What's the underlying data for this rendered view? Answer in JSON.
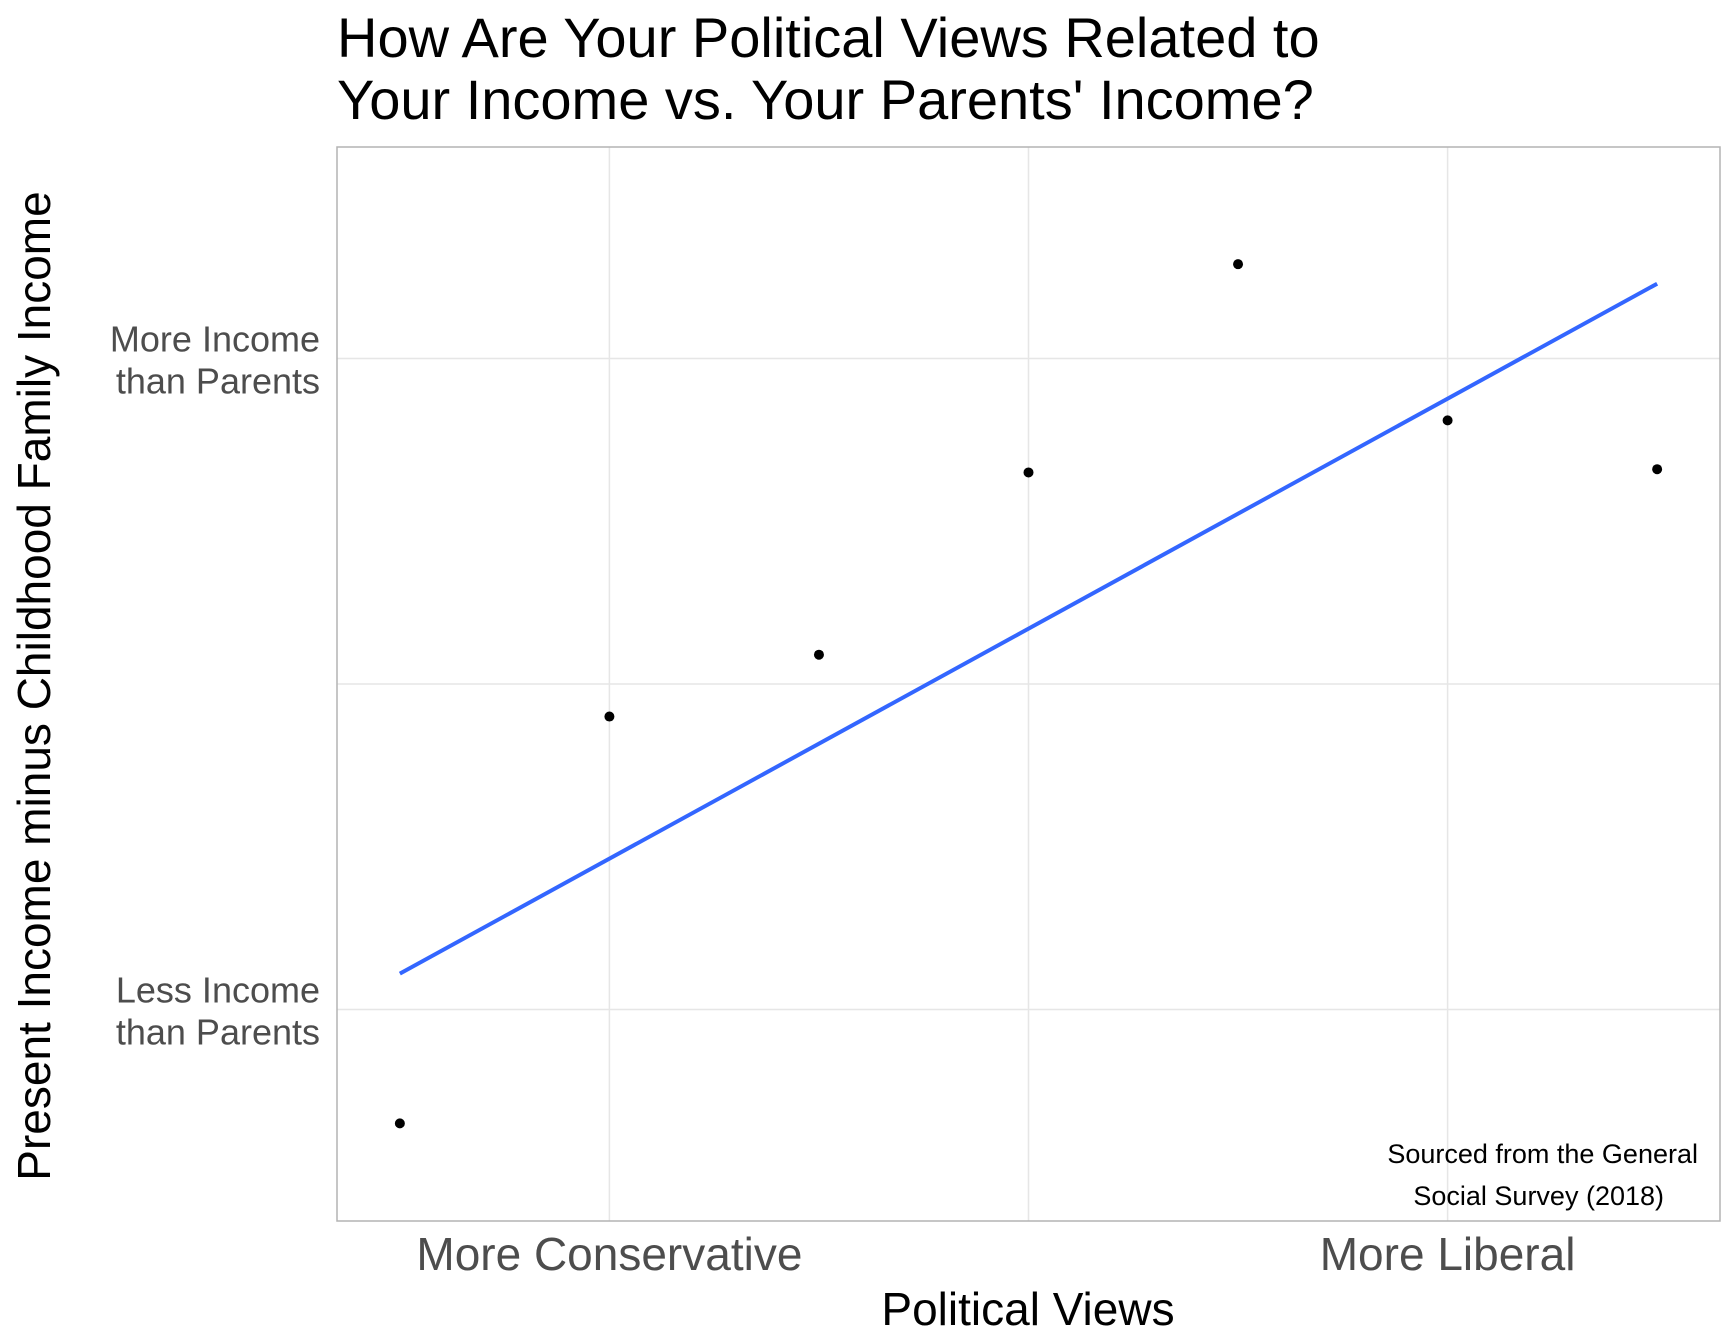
{
  "chart_data": {
    "type": "scatter",
    "title_lines": [
      "How Are Your Political Views Related to",
      "Your Income vs. Your Parents' Income?"
    ],
    "xlabel": "Political Views",
    "ylabel": "Present Income minus Childhood Family Income",
    "x_ticks": [
      {
        "value": 2,
        "label": "More Conservative"
      },
      {
        "value": 6,
        "label": "More Liberal"
      }
    ],
    "y_ticks": [
      {
        "value": 0.2,
        "label_lines": [
          "More Income",
          "than Parents"
        ]
      },
      {
        "value": -1.8,
        "label_lines": [
          "Less Income",
          "than Parents"
        ]
      }
    ],
    "x_gridlines": [
      2,
      4,
      6
    ],
    "y_gridlines": [
      -1.8,
      -0.8,
      0.2
    ],
    "xlim": [
      0.7,
      7.3
    ],
    "ylim": [
      -2.45,
      0.85
    ],
    "points": [
      {
        "x": 1,
        "y": -2.15
      },
      {
        "x": 2,
        "y": -0.9
      },
      {
        "x": 3,
        "y": -0.71
      },
      {
        "x": 4,
        "y": -0.15
      },
      {
        "x": 5,
        "y": 0.49
      },
      {
        "x": 6,
        "y": 0.01
      },
      {
        "x": 7,
        "y": -0.14
      }
    ],
    "trend_line": {
      "color": "#3366ff",
      "x": [
        1,
        7
      ],
      "y": [
        -1.69,
        0.43
      ]
    },
    "point_color": "#000000",
    "grid": true,
    "caption_lines": [
      "Sourced from the General",
      "Social Survey (2018)"
    ]
  }
}
